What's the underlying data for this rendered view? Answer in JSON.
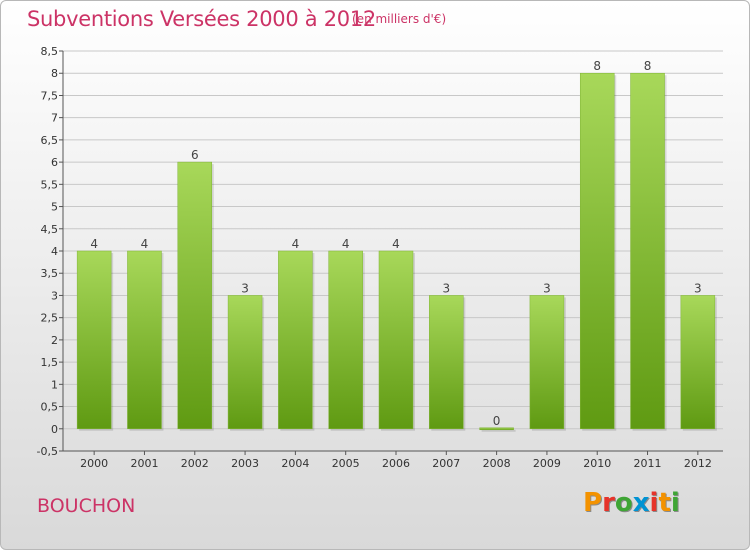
{
  "header": {
    "title": "Subventions Versées 2000 à 2012",
    "unit": "(en milliers d'€)"
  },
  "commune": "BOUCHON",
  "logo": {
    "letters": [
      "P",
      "r",
      "o",
      "x",
      "i",
      "t",
      "i"
    ],
    "colors": [
      "#f39200",
      "#e6332a",
      "#3fa535",
      "#0093d3",
      "#e6332a",
      "#f39200",
      "#3fa535"
    ]
  },
  "colors": {
    "bar_light": "#a8d85a",
    "bar_dark": "#5f9a12",
    "title": "#cc3366",
    "grid": "#c8c8c8"
  },
  "chart_data": {
    "type": "bar",
    "title": "Subventions Versées 2000 à 2012",
    "xlabel": "",
    "ylabel": "",
    "categories": [
      "2000",
      "2001",
      "2002",
      "2003",
      "2004",
      "2005",
      "2006",
      "2007",
      "2008",
      "2009",
      "2010",
      "2011",
      "2012"
    ],
    "values": [
      4,
      4,
      6,
      3,
      4,
      4,
      4,
      3,
      0,
      3,
      8,
      8,
      3
    ],
    "value_labels": [
      "4",
      "4",
      "6",
      "3",
      "4",
      "4",
      "4",
      "3",
      "0",
      "3",
      "8",
      "8",
      "3"
    ],
    "ylim": [
      -0.5,
      8.5
    ],
    "yticks": [
      -0.5,
      0,
      0.5,
      1,
      1.5,
      2,
      2.5,
      3,
      3.5,
      4,
      4.5,
      5,
      5.5,
      6,
      6.5,
      7,
      7.5,
      8,
      8.5
    ],
    "ytick_labels": [
      "-0,5",
      "0",
      "0,5",
      "1",
      "1,5",
      "2",
      "2,5",
      "3",
      "3,5",
      "4",
      "4,5",
      "5",
      "5,5",
      "6",
      "6,5",
      "7",
      "7,5",
      "8",
      "8,5"
    ],
    "grid": true,
    "legend": "none"
  }
}
